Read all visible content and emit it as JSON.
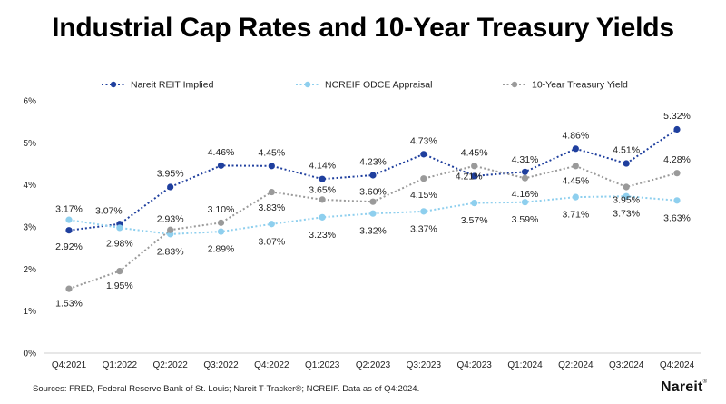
{
  "header": {
    "title": "Industrial Cap Rates and 10-Year Treasury Yields"
  },
  "footer": {
    "source": "Sources: FRED, Federal Reserve Bank of St. Louis; Nareit T-Tracker®; NCREIF. Data as of Q4:2024.",
    "brand": "Nareit"
  },
  "chart_data": {
    "type": "line",
    "title": "Industrial Cap Rates and 10-Year Treasury Yields",
    "xlabel": "",
    "ylabel": "",
    "ylim": [
      0,
      6
    ],
    "yticks": [
      "0%",
      "1%",
      "2%",
      "3%",
      "4%",
      "5%",
      "6%"
    ],
    "grid": false,
    "legend": "top",
    "categories": [
      "Q4:2021",
      "Q1:2022",
      "Q2:2022",
      "Q3:2022",
      "Q4:2022",
      "Q1:2023",
      "Q2:2023",
      "Q3:2023",
      "Q4:2023",
      "Q1:2024",
      "Q2:2024",
      "Q3:2024",
      "Q4:2024"
    ],
    "series": [
      {
        "name": "Nareit REIT Implied",
        "color": "#1f3f9e",
        "values": [
          2.92,
          3.07,
          3.95,
          4.46,
          4.45,
          4.14,
          4.23,
          4.73,
          4.21,
          4.31,
          4.86,
          4.51,
          5.32
        ],
        "labels": [
          "2.92%",
          "3.07%",
          "3.95%",
          "4.46%",
          "4.45%",
          "4.14%",
          "4.23%",
          "4.73%",
          "4.21%",
          "4.31%",
          "4.86%",
          "4.51%",
          "5.32%"
        ]
      },
      {
        "name": "NCREIF ODCE Appraisal",
        "color": "#8ecfee",
        "values": [
          3.17,
          2.98,
          2.83,
          2.89,
          3.07,
          3.23,
          3.32,
          3.37,
          3.57,
          3.59,
          3.71,
          3.73,
          3.63
        ],
        "labels": [
          "3.17%",
          "2.98%",
          "2.83%",
          "2.89%",
          "3.07%",
          "3.23%",
          "3.32%",
          "3.37%",
          "3.57%",
          "3.59%",
          "3.71%",
          "3.73%",
          "3.63%"
        ]
      },
      {
        "name": "10-Year Treasury Yield",
        "color": "#9a9a9a",
        "values": [
          1.53,
          1.95,
          2.93,
          3.1,
          3.83,
          3.65,
          3.6,
          4.15,
          4.45,
          4.16,
          4.45,
          3.95,
          4.28
        ],
        "labels": [
          "1.53%",
          "1.95%",
          "2.93%",
          "3.10%",
          "3.83%",
          "3.65%",
          "3.60%",
          "4.15%",
          "4.45%",
          "4.16%",
          "4.45%",
          "3.95%",
          "4.28%"
        ]
      }
    ]
  }
}
